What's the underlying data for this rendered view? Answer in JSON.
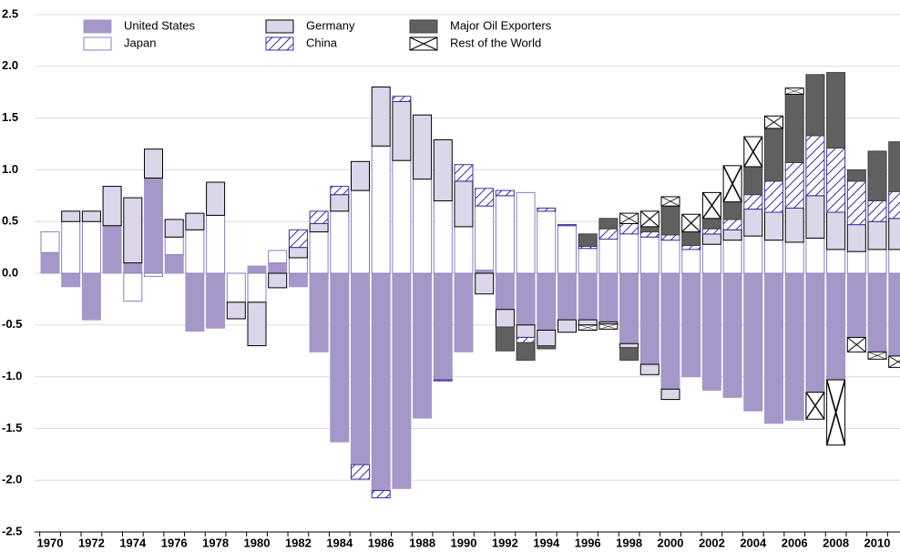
{
  "chart_data": {
    "type": "bar",
    "stacked": true,
    "categories": [
      "1970",
      null,
      "1972",
      null,
      "1974",
      null,
      "1976",
      null,
      "1978",
      null,
      "1980",
      null,
      "1982",
      null,
      "1984",
      null,
      "1986",
      null,
      "1988",
      null,
      "1990",
      null,
      "1992",
      null,
      "1994",
      null,
      "1996",
      null,
      "1998",
      null,
      "2000",
      null,
      "2002",
      null,
      "2004",
      null,
      "2006",
      null,
      "2008",
      null,
      "2010",
      null
    ],
    "ylim": [
      -2.5,
      2.5
    ],
    "yticks": [
      {
        "value": -2.5,
        "label": "-2.5"
      },
      {
        "value": -2,
        "label": "-2.0"
      },
      {
        "value": -1.5,
        "label": "-1.5"
      },
      {
        "value": -1,
        "label": "-1.0"
      },
      {
        "value": -0.5,
        "label": "-0.5"
      },
      {
        "value": 0,
        "label": "0.0"
      },
      {
        "value": 0.5,
        "label": "0.5"
      },
      {
        "value": 1,
        "label": "1.0"
      },
      {
        "value": 1.5,
        "label": "1.5"
      },
      {
        "value": 2,
        "label": "2.0"
      },
      {
        "value": 2.5,
        "label": "2.5"
      }
    ],
    "grid": true,
    "legend": "top-left",
    "series": [
      {
        "name": "United States",
        "color": "#a597c8",
        "edgecolor": "#a597c8",
        "pattern": "solid",
        "values": [
          0.2,
          -0.13,
          -0.45,
          0.46,
          0.1,
          0.92,
          0.18,
          -0.56,
          -0.53,
          0,
          0.07,
          0.1,
          -0.13,
          -0.76,
          -1.63,
          -1.85,
          -2.1,
          -2.08,
          -1.4,
          -1.03,
          -0.76,
          0.03,
          -0.35,
          -0.5,
          -0.55,
          -0.45,
          -0.45,
          -0.47,
          -0.68,
          -0.88,
          -1.12,
          -1.0,
          -1.13,
          -1.2,
          -1.33,
          -1.45,
          -1.42,
          -1.15,
          -1.03,
          -0.62,
          -0.76,
          -0.8
        ]
      },
      {
        "name": "Japan",
        "color": "#ffffff",
        "edgecolor": "#8a7fc0",
        "pattern": "solid",
        "values": [
          0.2,
          0.5,
          0.5,
          0,
          -0.27,
          -0.03,
          0.17,
          0.42,
          0.56,
          -0.28,
          -0.28,
          0.12,
          0.15,
          0.4,
          0.6,
          0.8,
          1.23,
          1.09,
          0.91,
          0.7,
          0.45,
          0.62,
          0.75,
          0.78,
          0.6,
          0.46,
          0.24,
          0.33,
          0.38,
          0.35,
          0.32,
          0.23,
          0.28,
          0.32,
          0.36,
          0.32,
          0.3,
          0.34,
          0.23,
          0.21,
          0.23,
          0.23
        ]
      },
      {
        "name": "Germany",
        "color": "#dcd6ea",
        "edgecolor": "#000000",
        "pattern": "solid",
        "values": [
          0,
          0.1,
          0.1,
          0.38,
          0.63,
          0.28,
          0.17,
          0.16,
          0.32,
          -0.16,
          -0.42,
          -0.14,
          0.1,
          0.08,
          0.16,
          0.28,
          0.57,
          0.57,
          0.62,
          0.59,
          0.44,
          -0.2,
          -0.17,
          -0.12,
          -0.15,
          -0.12,
          -0.05,
          -0.02,
          -0.04,
          -0.1,
          -0.1,
          0,
          0.1,
          0.1,
          0.26,
          0.27,
          0.33,
          0.41,
          0.36,
          0.26,
          0.27,
          0.3
        ]
      },
      {
        "name": "China",
        "color": "#3a2fa0",
        "edgecolor": "#3a2fa0",
        "pattern": "hatch",
        "values": [
          0,
          0,
          0,
          0,
          0,
          0,
          0,
          0,
          0,
          0,
          0,
          0,
          0.17,
          0.12,
          0.08,
          -0.14,
          -0.07,
          0.05,
          0,
          -0.01,
          0.16,
          0.17,
          0.05,
          -0.05,
          0.03,
          0.01,
          0.02,
          0.1,
          0.1,
          0.05,
          0.05,
          0.04,
          0.05,
          0.1,
          0.14,
          0.3,
          0.44,
          0.58,
          0.62,
          0.42,
          0.2,
          0.26
        ]
      },
      {
        "name": "Major Oil Exporters",
        "color": "#606060",
        "edgecolor": "#404040",
        "pattern": "solid",
        "values": [
          0,
          0,
          0,
          0,
          0,
          0,
          0,
          0,
          0,
          0,
          0,
          0,
          0,
          0,
          0,
          0,
          0,
          0,
          0,
          0,
          0,
          0,
          -0.23,
          -0.17,
          -0.03,
          0,
          0.12,
          0.1,
          -0.12,
          0.05,
          0.28,
          0.13,
          0.1,
          0.17,
          0.27,
          0.51,
          0.66,
          0.59,
          0.73,
          0.11,
          0.48,
          0.48
        ]
      },
      {
        "name": "Rest of the World",
        "color": "#000000",
        "edgecolor": "#000000",
        "pattern": "cross",
        "values": [
          0,
          0,
          0,
          0,
          0,
          0,
          0,
          0,
          0,
          0,
          0,
          0,
          0,
          0,
          0,
          0,
          0,
          0,
          0,
          0,
          0,
          0,
          0,
          0,
          0,
          0,
          -0.05,
          -0.05,
          0.1,
          0.15,
          0.09,
          0.17,
          0.25,
          0.35,
          0.29,
          0.12,
          0.06,
          -0.26,
          -0.63,
          -0.14,
          -0.07,
          -0.11
        ]
      }
    ]
  }
}
